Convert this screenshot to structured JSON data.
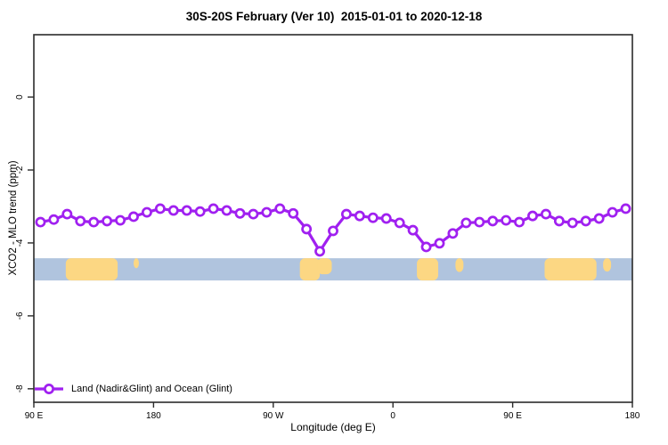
{
  "chart_data": {
    "type": "line",
    "title": "30S-20S February (Ver 10)  2015-01-01 to 2020-12-18",
    "xlabel": "Longitude (deg E)",
    "ylabel": "XCO2 - MLO trend (ppm)",
    "xlim": [
      90,
      540
    ],
    "ylim": [
      -8.37,
      1.71
    ],
    "grid": false,
    "x_ticks": [
      {
        "lon": 90,
        "label": "90 E"
      },
      {
        "lon": 180,
        "label": "180"
      },
      {
        "lon": 270,
        "label": "90 W"
      },
      {
        "lon": 360,
        "label": "0"
      },
      {
        "lon": 450,
        "label": "90 E"
      },
      {
        "lon": 540,
        "label": "180"
      }
    ],
    "y_ticks": [
      {
        "value": 0,
        "label": "0"
      },
      {
        "value": -2,
        "label": "-2"
      },
      {
        "value": -4,
        "label": "-4"
      },
      {
        "value": -6,
        "label": "-6"
      },
      {
        "value": -8,
        "label": "-8"
      }
    ],
    "series": [
      {
        "name": "Land (Nadir&Glint) and Ocean (Glint)",
        "color": "#A020F0",
        "marker": "open-circle",
        "x": [
          95,
          105,
          115,
          125,
          135,
          145,
          155,
          165,
          175,
          185,
          195,
          205,
          215,
          225,
          235,
          245,
          255,
          265,
          275,
          285,
          295,
          305,
          315,
          325,
          335,
          345,
          355,
          365,
          375,
          385,
          395,
          405,
          415,
          425,
          435,
          445,
          455,
          465,
          475,
          485,
          495,
          505,
          515,
          525,
          535
        ],
        "y": [
          -3.43,
          -3.36,
          -3.21,
          -3.4,
          -3.43,
          -3.4,
          -3.38,
          -3.28,
          -3.16,
          -3.06,
          -3.11,
          -3.11,
          -3.14,
          -3.06,
          -3.11,
          -3.19,
          -3.21,
          -3.16,
          -3.06,
          -3.19,
          -3.62,
          -4.23,
          -3.67,
          -3.21,
          -3.26,
          -3.31,
          -3.33,
          -3.45,
          -3.65,
          -4.11,
          -4.01,
          -3.74,
          -3.45,
          -3.43,
          -3.4,
          -3.38,
          -3.43,
          -3.26,
          -3.21,
          -3.4,
          -3.45,
          -3.4,
          -3.33,
          -3.16,
          -3.06
        ]
      }
    ],
    "map_strip": {
      "description": "ocean-land geography strip",
      "y_range": [
        -4.42,
        -5.03
      ],
      "ocean_color": "#B0C4DE",
      "land_color": "#FCD783",
      "land_segments": [
        {
          "name": "australia",
          "from": 114,
          "to": 153,
          "h": 1.0
        },
        {
          "name": "new-caledonia",
          "from": 165,
          "to": 169,
          "h": 0.45
        },
        {
          "name": "south-america-w",
          "from": 290,
          "to": 305,
          "h": 1.0
        },
        {
          "name": "south-america-e",
          "from": 303,
          "to": 314,
          "h": 0.72
        },
        {
          "name": "africa",
          "from": 378,
          "to": 394,
          "h": 1.0
        },
        {
          "name": "madagascar",
          "from": 407,
          "to": 413,
          "h": 0.62
        },
        {
          "name": "australia-2",
          "from": 474,
          "to": 513,
          "h": 1.0
        },
        {
          "name": "new-caledonia-2",
          "from": 518,
          "to": 524,
          "h": 0.6
        }
      ]
    },
    "legend": {
      "position": "bottom-left",
      "entries": [
        {
          "label": "Land (Nadir&Glint) and Ocean (Glint)",
          "color": "#A020F0",
          "marker": "open-circle"
        }
      ]
    },
    "axis_color": "#2b2b2b",
    "background_color": "#ffffff"
  }
}
